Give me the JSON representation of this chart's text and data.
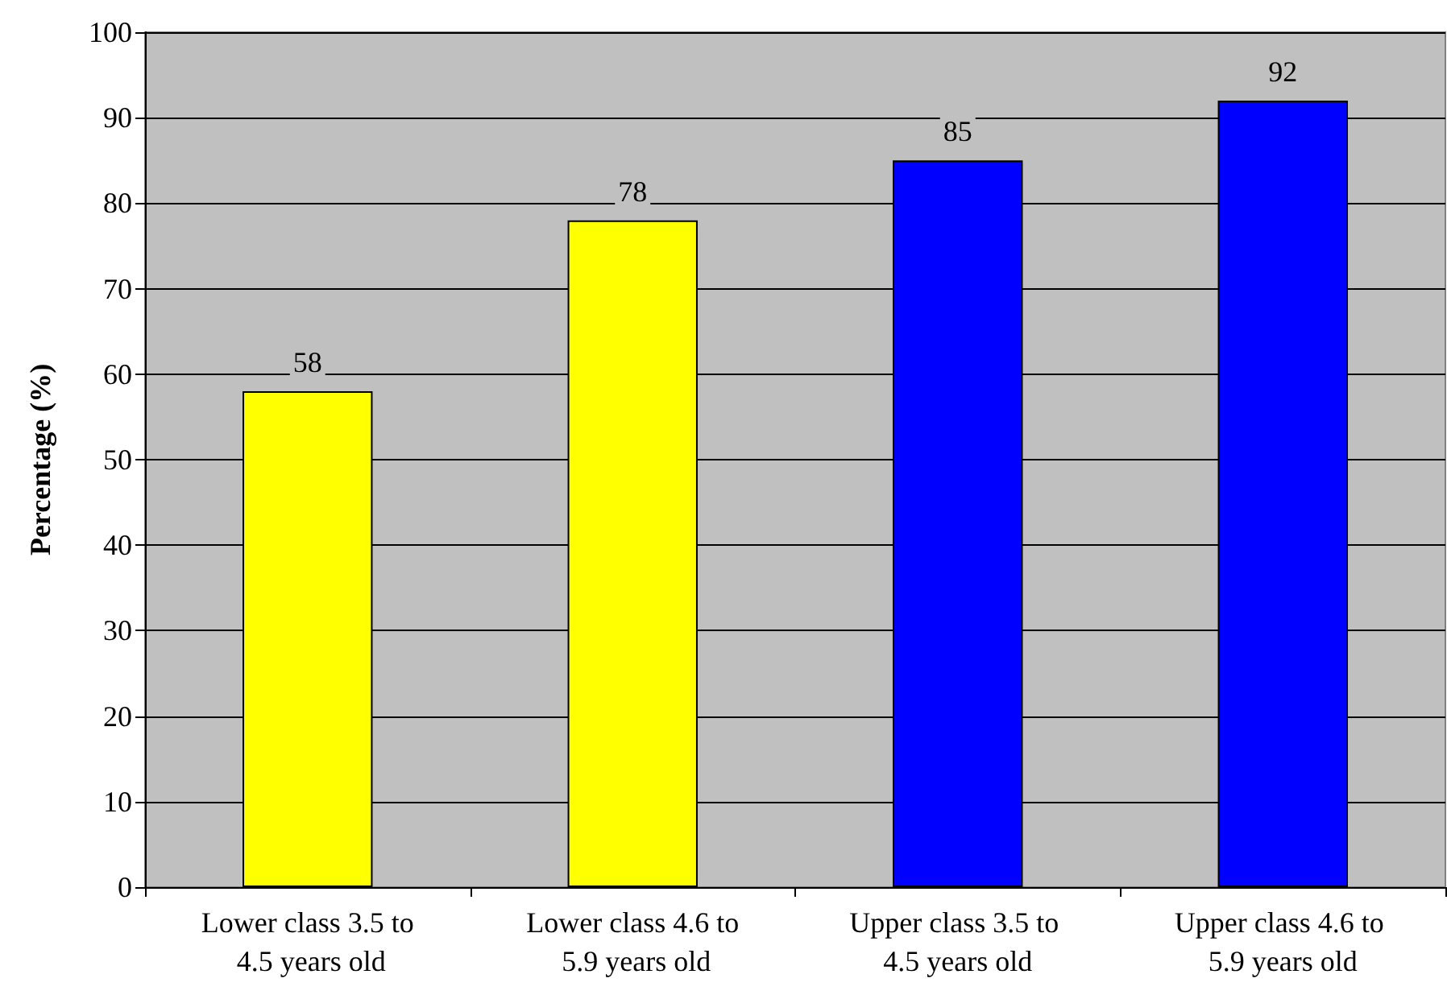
{
  "chart_data": {
    "type": "bar",
    "ylabel": "Percentage (%)",
    "categories": [
      "Lower class 3.5 to 4.5 years old",
      "Lower class 4.6 to 5.9 years old",
      "Upper class 3.5 to 4.5 years old",
      "Upper class 4.6 to 5.9 years old"
    ],
    "values": [
      58,
      78,
      85,
      92
    ],
    "colors": [
      "#ffff00",
      "#ffff00",
      "#0000ff",
      "#0000ff"
    ],
    "ylim": [
      0,
      100
    ],
    "yticks": [
      0,
      10,
      20,
      30,
      40,
      50,
      60,
      70,
      80,
      90,
      100
    ],
    "grid": true,
    "data_labels": true
  }
}
